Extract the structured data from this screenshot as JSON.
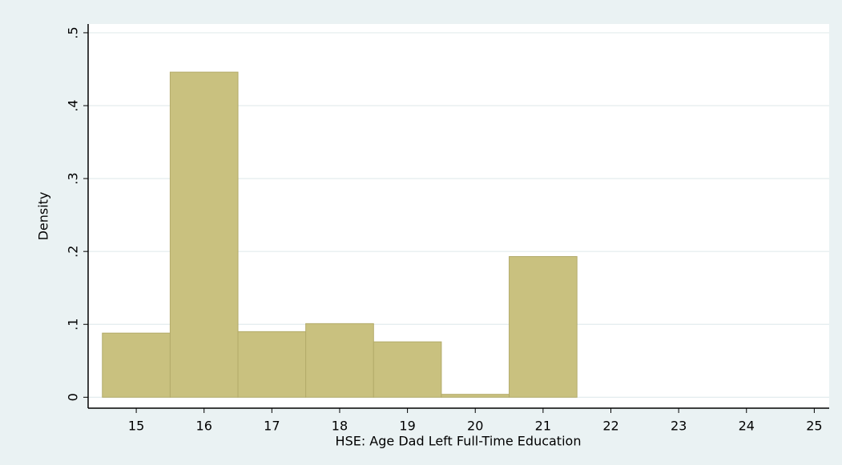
{
  "chart_data": {
    "type": "histogram",
    "x_label": "HSE: Age Dad Left Full-Time Education",
    "y_label": "Density",
    "bins": [
      14.5,
      15.5,
      16.5,
      17.5,
      18.5,
      19.5,
      20.5,
      21.5
    ],
    "values": [
      0.088,
      0.446,
      0.09,
      0.101,
      0.076,
      0.004,
      0.193
    ],
    "color": "#c9c17f",
    "edge_color": "#b3ab6a",
    "xlim": [
      14.29,
      25.22
    ],
    "ylim": [
      -0.015,
      0.512
    ],
    "xticks": [
      15,
      16,
      17,
      18,
      19,
      20,
      21,
      22,
      23,
      24,
      25
    ],
    "yticks": [
      0,
      {
        "value": 0.1,
        "label": ".1"
      },
      {
        "value": 0.2,
        "label": ".2"
      },
      {
        "value": 0.3,
        "label": ".3"
      },
      {
        "value": 0.4,
        "label": ".4"
      },
      {
        "value": 0.5,
        "label": ".5"
      }
    ],
    "grid": true
  }
}
